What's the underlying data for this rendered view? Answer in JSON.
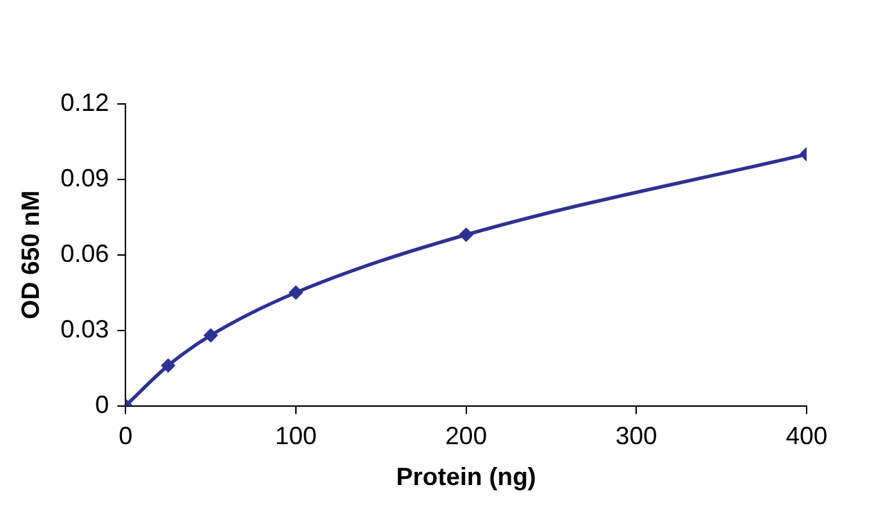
{
  "chart_data": {
    "type": "line",
    "xlabel": "Protein (ng)",
    "ylabel": "OD 650 nM",
    "x": [
      0,
      25,
      50,
      100,
      200,
      400
    ],
    "series": [
      {
        "color": "#2e3192",
        "values": [
          0,
          0.016,
          0.028,
          0.045,
          0.068,
          0.1
        ]
      }
    ],
    "xlim": [
      0,
      400
    ],
    "xticks": [
      0,
      100,
      200,
      300,
      400
    ],
    "ylim": [
      0,
      0.12
    ],
    "yticks": [
      0,
      0.03,
      0.06,
      0.09,
      0.12
    ],
    "grid": false,
    "legend": false,
    "marker": "diamond",
    "line_style": "solid"
  }
}
